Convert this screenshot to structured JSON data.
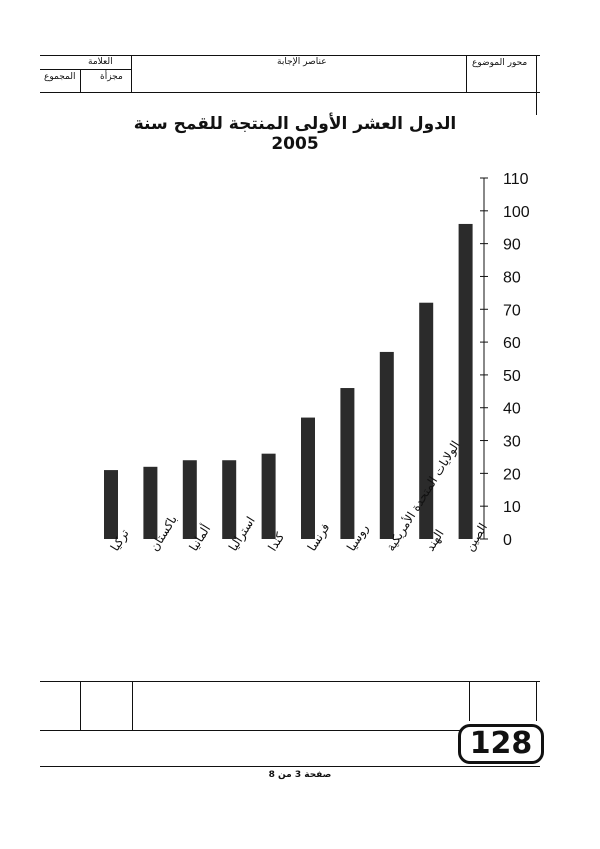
{
  "header": {
    "axis_label": "محور الموضوع",
    "answer_elements_label": "عناصر الإجابة",
    "grade_label": "العلامة",
    "partial_label": "مجزأة",
    "total_label": "المجموع"
  },
  "page_badge": "128",
  "footer": "صفحة 3 من 8",
  "chart_data": {
    "type": "bar",
    "title": "الدول العشر الأولى المنتجة للقمح سنة 2005",
    "categories": [
      "تركيا",
      "باكستان",
      "ألمانيا",
      "استراليا",
      "كندا",
      "فرنسا",
      "روسيا",
      "الولايات المتحدة الأمريكية",
      "الهند",
      "الصين"
    ],
    "values": [
      21,
      22,
      24,
      24,
      26,
      37,
      46,
      57,
      72,
      96
    ],
    "ylim": [
      0,
      110
    ],
    "yticks": [
      0,
      10,
      20,
      30,
      40,
      50,
      60,
      70,
      80,
      90,
      100,
      110
    ],
    "y_axis_side": "right",
    "grid": false,
    "colors": {
      "bar": "#2b2b2b",
      "axis": "#111111"
    }
  }
}
